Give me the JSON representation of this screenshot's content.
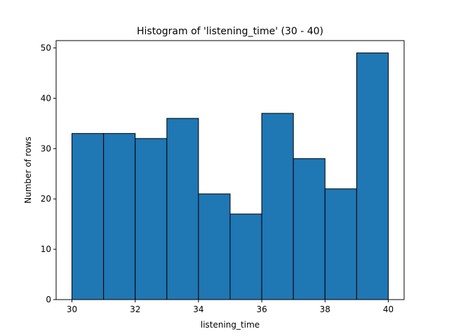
{
  "chart_data": {
    "type": "bar",
    "title": "Histogram of 'listening_time' (30 - 40)",
    "xlabel": "listening_time",
    "ylabel": "Number of rows",
    "bin_edges": [
      30,
      31,
      32,
      33,
      34,
      35,
      36,
      37,
      38,
      39,
      40
    ],
    "values": [
      33,
      33,
      32,
      36,
      21,
      17,
      37,
      28,
      22,
      49
    ],
    "xlim": [
      29.5,
      40.5
    ],
    "ylim": [
      0,
      51.45
    ],
    "xticks": [
      30,
      32,
      34,
      36,
      38,
      40
    ],
    "yticks": [
      0,
      10,
      20,
      30,
      40,
      50
    ],
    "grid": false,
    "bar_color": "#1f77b4",
    "edge_color": "#000000"
  }
}
